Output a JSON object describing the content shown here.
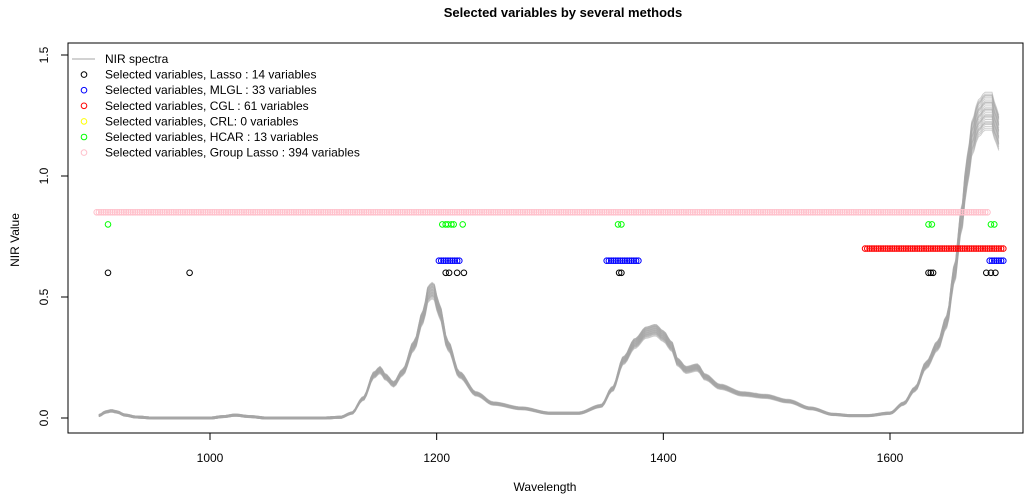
{
  "chart_data": {
    "type": "line",
    "title": "Selected variables by several methods",
    "xlabel": "Wavelength",
    "ylabel": "NIR Value",
    "xlim": [
      880,
      1700
    ],
    "ylim": [
      -0.05,
      1.55
    ],
    "xticks": [
      1000,
      1200,
      1400,
      1600
    ],
    "yticks": [
      0.0,
      0.5,
      1.0,
      1.5
    ],
    "xtick_labels": [
      "1000",
      "1200",
      "1400",
      "1600"
    ],
    "ytick_labels": [
      "0.0",
      "0.5",
      "1.0",
      "1.5"
    ],
    "legend_position": "top-left",
    "spectra": {
      "name": "NIR spectra",
      "color": "#a6a6a6",
      "x_range": [
        902,
        1696
      ],
      "profile": [
        [
          902,
          0.01
        ],
        [
          908,
          0.025
        ],
        [
          913,
          0.03
        ],
        [
          918,
          0.025
        ],
        [
          925,
          0.012
        ],
        [
          935,
          0.004
        ],
        [
          950,
          0.0
        ],
        [
          980,
          0.0
        ],
        [
          1000,
          0.0
        ],
        [
          1012,
          0.006
        ],
        [
          1022,
          0.012
        ],
        [
          1035,
          0.006
        ],
        [
          1050,
          0.0
        ],
        [
          1100,
          0.0
        ],
        [
          1115,
          0.003
        ],
        [
          1125,
          0.02
        ],
        [
          1135,
          0.08
        ],
        [
          1145,
          0.18
        ],
        [
          1150,
          0.2
        ],
        [
          1155,
          0.17
        ],
        [
          1162,
          0.14
        ],
        [
          1170,
          0.19
        ],
        [
          1180,
          0.3
        ],
        [
          1188,
          0.42
        ],
        [
          1193,
          0.52
        ],
        [
          1197,
          0.53
        ],
        [
          1202,
          0.45
        ],
        [
          1210,
          0.3
        ],
        [
          1220,
          0.18
        ],
        [
          1235,
          0.1
        ],
        [
          1250,
          0.06
        ],
        [
          1275,
          0.04
        ],
        [
          1300,
          0.02
        ],
        [
          1325,
          0.02
        ],
        [
          1345,
          0.05
        ],
        [
          1355,
          0.12
        ],
        [
          1365,
          0.24
        ],
        [
          1375,
          0.31
        ],
        [
          1385,
          0.355
        ],
        [
          1393,
          0.365
        ],
        [
          1400,
          0.34
        ],
        [
          1407,
          0.3
        ],
        [
          1413,
          0.23
        ],
        [
          1420,
          0.2
        ],
        [
          1430,
          0.21
        ],
        [
          1437,
          0.17
        ],
        [
          1450,
          0.13
        ],
        [
          1470,
          0.1
        ],
        [
          1490,
          0.09
        ],
        [
          1510,
          0.07
        ],
        [
          1530,
          0.04
        ],
        [
          1550,
          0.015
        ],
        [
          1565,
          0.01
        ],
        [
          1580,
          0.01
        ],
        [
          1600,
          0.02
        ],
        [
          1612,
          0.06
        ],
        [
          1622,
          0.12
        ],
        [
          1632,
          0.22
        ],
        [
          1642,
          0.3
        ],
        [
          1650,
          0.4
        ],
        [
          1657,
          0.6
        ],
        [
          1663,
          0.82
        ],
        [
          1668,
          1.02
        ],
        [
          1673,
          1.17
        ],
        [
          1678,
          1.24
        ],
        [
          1684,
          1.27
        ],
        [
          1690,
          1.27
        ],
        [
          1693,
          1.22
        ],
        [
          1696,
          1.18
        ]
      ]
    },
    "series": [
      {
        "name": "Selected variables, Lasso : 14 variables",
        "color": "#000000",
        "y": 0.6,
        "x": [
          910,
          982,
          1208,
          1211,
          1218,
          1224,
          1361,
          1363,
          1634,
          1636,
          1638,
          1685,
          1689,
          1693
        ]
      },
      {
        "name": "Selected variables, MLGL : 33 variables",
        "color": "#0000ff",
        "y": 0.65,
        "x_ranges": [
          [
            1202,
            1220
          ],
          [
            1350,
            1378
          ],
          [
            1688,
            1700
          ]
        ]
      },
      {
        "name": "Selected variables, CGL : 61 variables",
        "color": "#ff0000",
        "y": 0.7,
        "x_ranges": [
          [
            1578,
            1700
          ]
        ]
      },
      {
        "name": "Selected variables, CRL: 0 variables",
        "color": "#ffff00",
        "y": null,
        "x": []
      },
      {
        "name": "Selected variables, HCAR : 13 variables",
        "color": "#00ff00",
        "y": 0.8,
        "x": [
          910,
          1205,
          1208,
          1210,
          1213,
          1215,
          1223,
          1360,
          1363,
          1634,
          1637,
          1689,
          1692
        ]
      },
      {
        "name": "Selected variables, Group Lasso : 394 variables",
        "color": "#ffc0cb",
        "y": 0.85,
        "x_ranges": [
          [
            900,
            1686
          ]
        ]
      }
    ]
  }
}
